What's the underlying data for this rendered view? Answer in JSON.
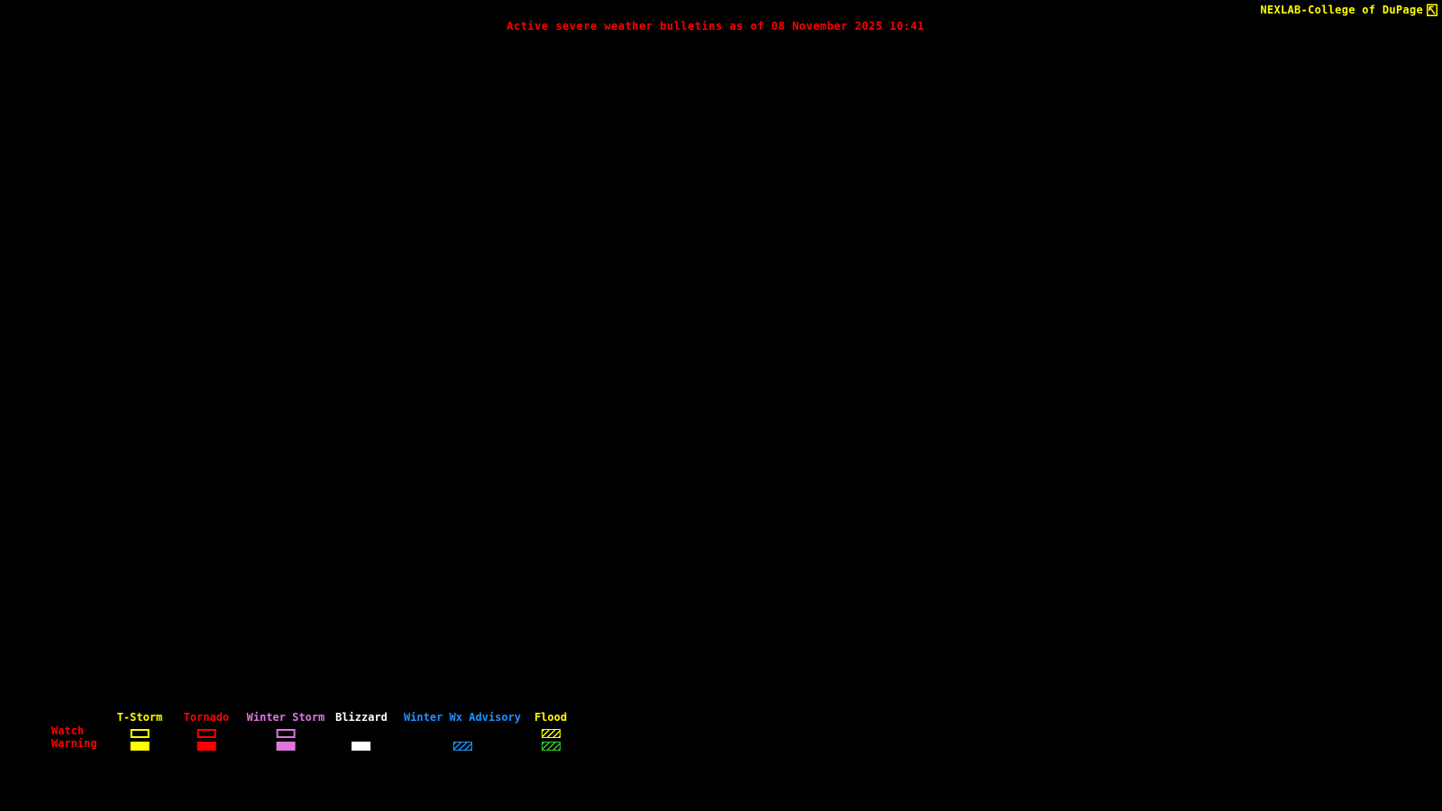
{
  "header": {
    "title": "Active severe weather bulletins as of 08 November 2025 10:41"
  },
  "brand": {
    "name": "NEXLAB-College of DuPage",
    "icon": "nw-arrow-box-icon"
  },
  "colors": {
    "background": "#000000",
    "title": "#FF0000",
    "brand": "#FFFF00",
    "row_label": "#FF0000"
  },
  "legend": {
    "row_labels": [
      {
        "label": "Watch"
      },
      {
        "label": "Warning"
      }
    ],
    "columns": [
      {
        "label": "T-Storm",
        "color": "#FFFF00",
        "watch": "outline",
        "warning": "fill"
      },
      {
        "label": "Tornado",
        "color": "#FF0000",
        "watch": "outline",
        "warning": "fill"
      },
      {
        "label": "Winter Storm",
        "color": "#DD77DD",
        "watch": "outline",
        "warning": "fill"
      },
      {
        "label": "Blizzard",
        "color": "#FFFFFF",
        "watch": "none",
        "warning": "fill"
      },
      {
        "label": "Winter Wx Advisory",
        "color": "#1E90FF",
        "watch": "none",
        "warning": "hatch"
      },
      {
        "label": "Flood",
        "color": "#FFFF00",
        "watch": "hatch",
        "warning": "hatch",
        "warning_color": "#32CD32"
      }
    ]
  }
}
